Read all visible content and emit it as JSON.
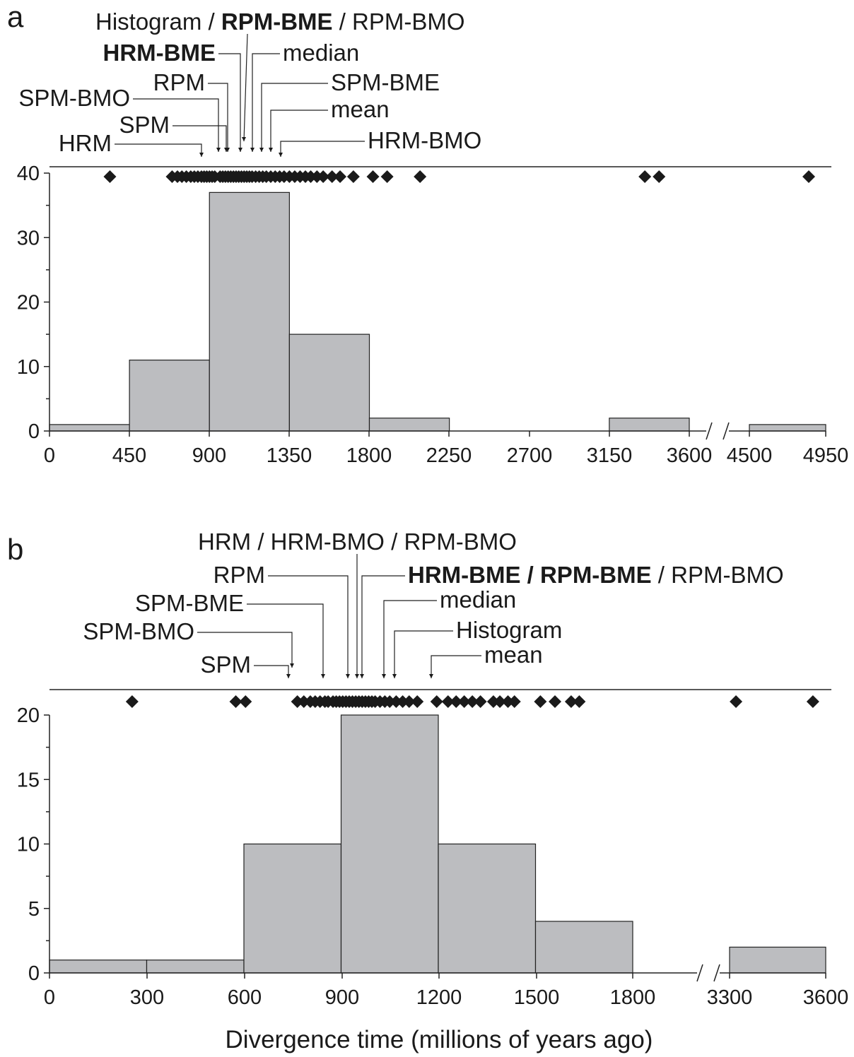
{
  "xlabel": "Divergence time (millions of years ago)",
  "chart_data": [
    {
      "type": "bar",
      "panel": "a",
      "histogram_type": "histogram",
      "x_ticks": [
        "0",
        "450",
        "900",
        "1350",
        "1800",
        "2250",
        "2700",
        "3150",
        "3600",
        "4500",
        "4950"
      ],
      "y_ticks": [
        "0",
        "10",
        "20",
        "30",
        "40"
      ],
      "ylim": [
        0,
        40
      ],
      "axis_break": "between 3600 and 4500",
      "bins": [
        {
          "from": 0,
          "to": 450,
          "value": 1
        },
        {
          "from": 450,
          "to": 900,
          "value": 11
        },
        {
          "from": 900,
          "to": 1350,
          "value": 37
        },
        {
          "from": 1350,
          "to": 1800,
          "value": 15
        },
        {
          "from": 1800,
          "to": 2250,
          "value": 2
        },
        {
          "from": 3150,
          "to": 3600,
          "value": 2
        },
        {
          "from": 4500,
          "to": 4950,
          "value": 1
        }
      ],
      "point_estimates": [
        340,
        690,
        720,
        745,
        770,
        795,
        815,
        835,
        855,
        870,
        885,
        900,
        915,
        930,
        960,
        975,
        990,
        1005,
        1020,
        1035,
        1050,
        1065,
        1080,
        1095,
        1110,
        1125,
        1140,
        1160,
        1180,
        1200,
        1220,
        1245,
        1270,
        1295,
        1320,
        1350,
        1380,
        1410,
        1440,
        1470,
        1505,
        1540,
        1590,
        1635,
        1710,
        1820,
        1900,
        2085,
        3350,
        3430,
        4850
      ],
      "annotations": [
        {
          "text": "Histogram / ",
          "bold": "RPM-BME",
          "suffix": " / RPM-BMO",
          "value": 1115
        },
        {
          "text": "",
          "bold": "HRM-BME",
          "suffix": "",
          "value": 1080
        },
        {
          "text": "median",
          "bold": "",
          "suffix": "",
          "value": 1150
        },
        {
          "text": "RPM",
          "bold": "",
          "suffix": "",
          "value": 1000
        },
        {
          "text": "SPM-BME",
          "bold": "",
          "suffix": "",
          "value": 1200
        },
        {
          "text": "SPM-BMO",
          "bold": "",
          "suffix": "",
          "value": 950
        },
        {
          "text": "mean",
          "bold": "",
          "suffix": "",
          "value": 1250
        },
        {
          "text": "SPM",
          "bold": "",
          "suffix": "",
          "value": 950
        },
        {
          "text": "HRM",
          "bold": "",
          "suffix": "",
          "value": 860
        },
        {
          "text": "HRM-BMO",
          "bold": "",
          "suffix": "",
          "value": 1310
        }
      ]
    },
    {
      "type": "bar",
      "panel": "b",
      "x_ticks": [
        "0",
        "300",
        "600",
        "900",
        "1200",
        "1500",
        "1800",
        "3300",
        "3600"
      ],
      "y_ticks": [
        "0",
        "5",
        "10",
        "15",
        "20"
      ],
      "ylim": [
        0,
        20
      ],
      "axis_break": "between 1800 and 3300",
      "bins": [
        {
          "from": 0,
          "to": 300,
          "value": 1
        },
        {
          "from": 300,
          "to": 600,
          "value": 1
        },
        {
          "from": 600,
          "to": 900,
          "value": 10
        },
        {
          "from": 900,
          "to": 1200,
          "value": 20
        },
        {
          "from": 1200,
          "to": 1500,
          "value": 10
        },
        {
          "from": 1500,
          "to": 1800,
          "value": 4
        },
        {
          "from": 3300,
          "to": 3600,
          "value": 2
        }
      ],
      "point_estimates": [
        255,
        575,
        605,
        765,
        785,
        805,
        820,
        835,
        850,
        860,
        875,
        885,
        895,
        905,
        915,
        925,
        935,
        945,
        955,
        965,
        975,
        985,
        995,
        1005,
        1020,
        1035,
        1050,
        1070,
        1090,
        1110,
        1135,
        1195,
        1230,
        1255,
        1280,
        1305,
        1330,
        1370,
        1390,
        1415,
        1435,
        1515,
        1560,
        1610,
        1635,
        3320,
        3560
      ],
      "annotations": [
        {
          "text": "HRM / HRM-BMO / RPM-BMO",
          "bold": "",
          "suffix": "",
          "value": 945
        },
        {
          "text": "RPM",
          "bold": "",
          "suffix": "",
          "value": 920
        },
        {
          "text": "",
          "bold": "HRM-BME / RPM-BME",
          "suffix": " / RPM-BMO",
          "value": 960
        },
        {
          "text": "SPM-BME",
          "bold": "",
          "suffix": "",
          "value": 845
        },
        {
          "text": "median",
          "bold": "",
          "suffix": "",
          "value": 1030
        },
        {
          "text": "SPM-BMO",
          "bold": "",
          "suffix": "",
          "value": 750
        },
        {
          "text": "Histogram",
          "bold": "",
          "suffix": "",
          "value": 1065
        },
        {
          "text": "mean",
          "bold": "",
          "suffix": "",
          "value": 1175
        },
        {
          "text": "SPM",
          "bold": "",
          "suffix": "",
          "value": 740
        }
      ]
    }
  ]
}
